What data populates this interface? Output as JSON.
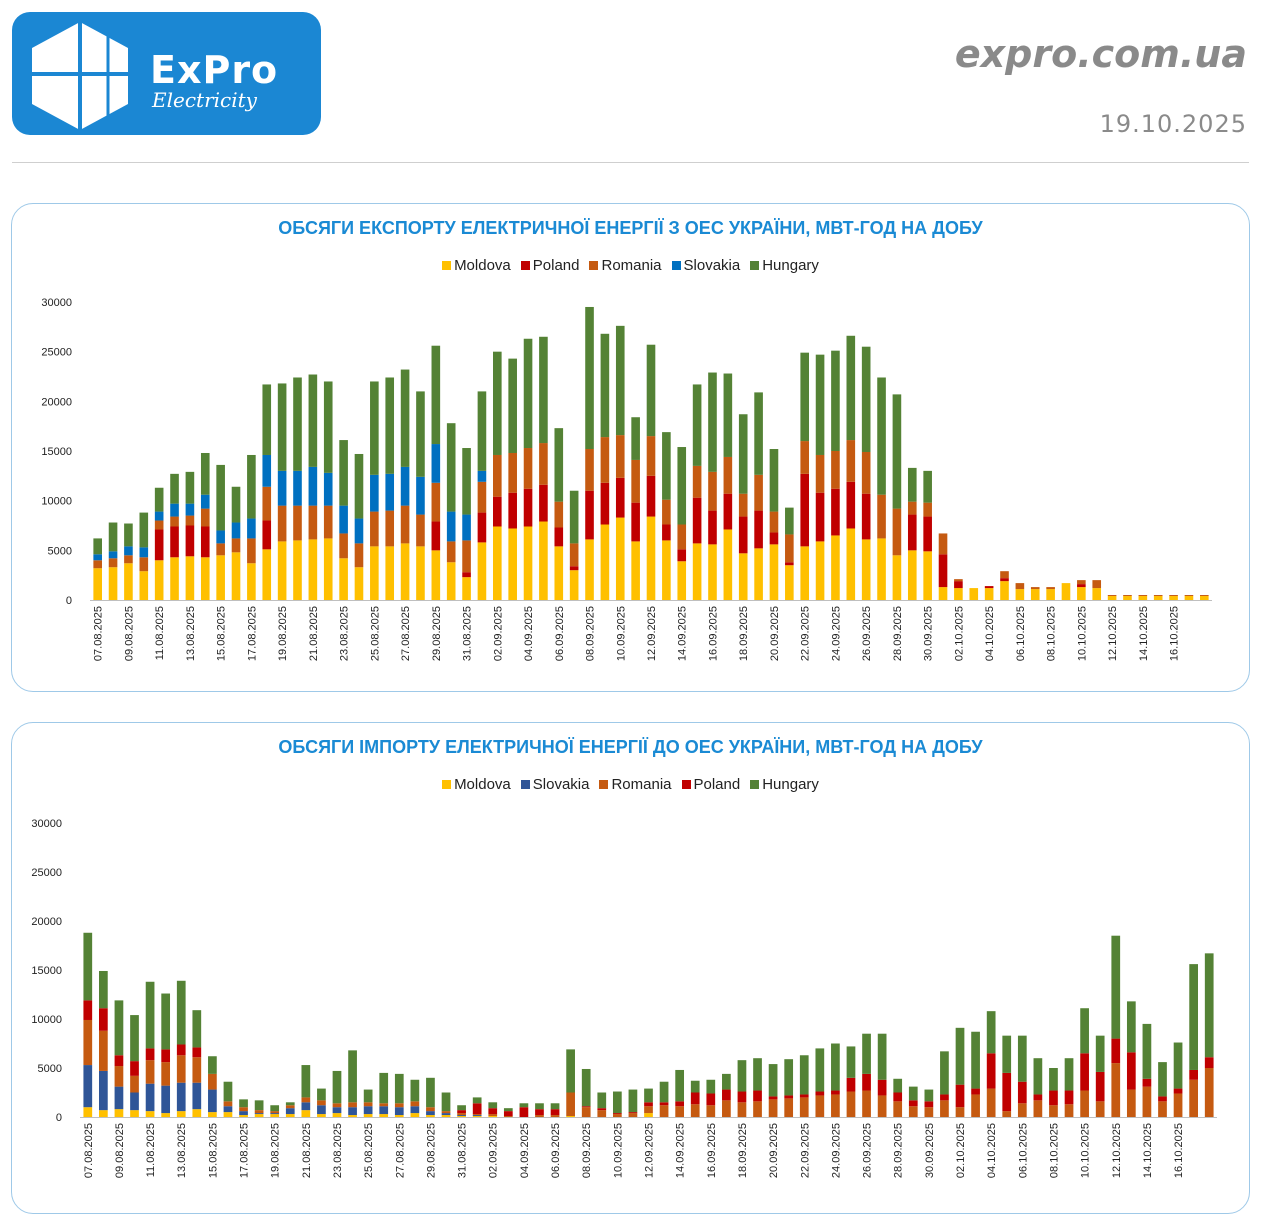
{
  "header": {
    "logo_text": "ExPro",
    "logo_subtitle": "Electricity",
    "site": "expro.com.ua",
    "date": "19.10.2025"
  },
  "colors": {
    "Moldova": "#ffc000",
    "Poland": "#c00000",
    "Romania": "#c55a11",
    "Slovakia_export": "#0070c0",
    "Slovakia_import": "#2f5597",
    "Hungary": "#548235",
    "title": "#1a8ad4"
  },
  "chart_data": [
    {
      "type": "bar",
      "stacked": true,
      "title": "ОБСЯГИ ЕКСПОРТУ ЕЛЕКТРИЧНОЇ ЕНЕРГІЇ З ОЕС УКРАЇНИ, МВТ-ГОД НА ДОБУ",
      "ylim": [
        0,
        30000
      ],
      "yticks": [
        "0",
        "5000",
        "10000",
        "15000",
        "20000",
        "25000",
        "30000"
      ],
      "legend": [
        "Moldova",
        "Poland",
        "Romania",
        "Slovakia",
        "Hungary"
      ],
      "tick_labels": [
        "07.08.2025",
        "09.08.2025",
        "11.08.2025",
        "13.08.2025",
        "15.08.2025",
        "17.08.2025",
        "19.08.2025",
        "21.08.2025",
        "23.08.2025",
        "25.08.2025",
        "27.08.2025",
        "29.08.2025",
        "31.08.2025",
        "02.09.2025",
        "04.09.2025",
        "06.09.2025",
        "08.09.2025",
        "10.09.2025",
        "12.09.2025",
        "14.09.2025",
        "16.09.2025",
        "18.09.2025",
        "20.09.2025",
        "22.09.2025",
        "24.09.2025",
        "26.09.2025",
        "28.09.2025",
        "30.09.2025",
        "02.10.2025",
        "04.10.2025",
        "06.10.2025",
        "08.10.2025",
        "10.10.2025",
        "12.10.2025",
        "14.10.2025",
        "16.10.2025"
      ],
      "series": [
        {
          "name": "Moldova",
          "values": [
            3200,
            3300,
            3700,
            2900,
            4000,
            4300,
            4400,
            4300,
            4500,
            4800,
            3700,
            5100,
            5900,
            6000,
            6100,
            6200,
            4200,
            3300,
            5400,
            5400,
            5700,
            5400,
            5000,
            3800,
            2300,
            5800,
            7400,
            7200,
            7400,
            7900,
            5400,
            3000,
            6100,
            7600,
            8300,
            5900,
            8400,
            6000,
            3900,
            5700,
            5600,
            7100,
            4700,
            5200,
            5600,
            3500,
            5400,
            5900,
            6500,
            7200,
            6100,
            6200,
            4500,
            5000,
            4900,
            1300,
            1200,
            1200,
            1200,
            1900,
            1100,
            1100,
            1100,
            1700,
            1300,
            1200,
            400,
            400,
            400,
            400,
            400,
            400,
            400
          ]
        },
        {
          "name": "Poland",
          "values": [
            0,
            0,
            0,
            0,
            3100,
            3100,
            3100,
            3100,
            0,
            0,
            0,
            2900,
            0,
            0,
            0,
            0,
            0,
            0,
            0,
            0,
            0,
            0,
            2900,
            0,
            500,
            3000,
            3000,
            3600,
            3800,
            3700,
            1900,
            400,
            4900,
            4200,
            4000,
            3900,
            4100,
            1600,
            1200,
            4600,
            3400,
            3600,
            3700,
            3800,
            1200,
            300,
            7300,
            4900,
            4700,
            4700,
            4600,
            0,
            0,
            3600,
            3500,
            3300,
            700,
            0,
            200,
            300,
            0,
            0,
            0,
            0,
            300,
            0,
            0,
            0,
            0,
            0,
            0,
            0,
            0
          ]
        },
        {
          "name": "Romania",
          "values": [
            800,
            900,
            800,
            1400,
            900,
            1000,
            1000,
            1800,
            1200,
            1400,
            2500,
            3400,
            3600,
            3500,
            3400,
            3300,
            2500,
            2400,
            3500,
            3600,
            3800,
            3200,
            3900,
            2100,
            3200,
            3100,
            4200,
            4000,
            4100,
            4200,
            2600,
            2300,
            4200,
            4600,
            4300,
            4300,
            4000,
            2500,
            2500,
            3200,
            3900,
            3700,
            2300,
            3600,
            2100,
            2800,
            3300,
            3800,
            3800,
            4200,
            4200,
            4400,
            4700,
            1300,
            1400,
            2100,
            200,
            0,
            0,
            700,
            600,
            200,
            200,
            0,
            400,
            800,
            100,
            100,
            100,
            100,
            100,
            100,
            100
          ]
        },
        {
          "name": "Slovakia",
          "values": [
            600,
            700,
            900,
            1000,
            900,
            1300,
            1200,
            1400,
            1300,
            1600,
            2000,
            3200,
            3500,
            3500,
            3900,
            3300,
            2800,
            2500,
            3700,
            3700,
            3900,
            3800,
            3900,
            3000,
            2600,
            1100,
            0,
            0,
            0,
            0,
            0,
            0,
            0,
            0,
            0,
            0,
            0,
            0,
            0,
            0,
            0,
            0,
            0,
            0,
            0,
            0,
            0,
            0,
            0,
            0,
            0,
            0,
            0,
            0,
            0,
            0,
            0,
            0,
            0,
            0,
            0,
            0,
            0,
            0,
            0,
            0,
            0,
            0,
            0,
            0,
            0,
            0,
            0
          ]
        },
        {
          "name": "Hungary",
          "values": [
            1600,
            2900,
            2300,
            3500,
            2400,
            3000,
            3200,
            4200,
            6600,
            3600,
            6400,
            7100,
            8800,
            9400,
            9300,
            9200,
            6600,
            6500,
            9400,
            9700,
            9800,
            8600,
            9900,
            8900,
            6700,
            8000,
            10400,
            9500,
            11000,
            10700,
            7400,
            5300,
            14300,
            10400,
            11000,
            4300,
            9200,
            6800,
            7800,
            8200,
            10000,
            8400,
            8000,
            8300,
            6300,
            2700,
            8900,
            10100,
            10100,
            10500,
            10600,
            11800,
            11500,
            3400,
            3200,
            0,
            0,
            0,
            0,
            0,
            0,
            0,
            0,
            0,
            0,
            0,
            0,
            0,
            0,
            0,
            0,
            0,
            0
          ]
        }
      ]
    },
    {
      "type": "bar",
      "stacked": true,
      "title": "ОБСЯГИ ІМПОРТУ ЕЛЕКТРИЧНОЇ ЕНЕРГІЇ ДО ОЕС УКРАЇНИ, МВТ-ГОД НА ДОБУ",
      "ylim": [
        0,
        30000
      ],
      "yticks": [
        "0",
        "5000",
        "10000",
        "15000",
        "20000",
        "25000",
        "30000"
      ],
      "legend": [
        "Moldova",
        "Slovakia",
        "Romania",
        "Poland",
        "Hungary"
      ],
      "tick_labels": [
        "07.08.2025",
        "09.08.2025",
        "11.08.2025",
        "13.08.2025",
        "15.08.2025",
        "17.08.2025",
        "19.08.2025",
        "21.08.2025",
        "23.08.2025",
        "25.08.2025",
        "27.08.2025",
        "29.08.2025",
        "31.08.2025",
        "02.09.2025",
        "04.09.2025",
        "06.09.2025",
        "08.09.2025",
        "10.09.2025",
        "12.09.2025",
        "14.09.2025",
        "16.09.2025",
        "18.09.2025",
        "20.09.2025",
        "22.09.2025",
        "24.09.2025",
        "26.09.2025",
        "28.09.2025",
        "30.09.2025",
        "02.10.2025",
        "04.10.2025",
        "06.10.2025",
        "08.10.2025",
        "10.10.2025",
        "12.10.2025",
        "14.10.2025",
        "16.10.2025"
      ],
      "series": [
        {
          "name": "Moldova",
          "values": [
            1000,
            700,
            800,
            700,
            600,
            400,
            600,
            800,
            500,
            500,
            200,
            300,
            300,
            300,
            700,
            300,
            400,
            200,
            300,
            300,
            200,
            400,
            200,
            200,
            100,
            100,
            100,
            0,
            0,
            0,
            0,
            100,
            0,
            0,
            0,
            0,
            400,
            0,
            0,
            0,
            0,
            0,
            0,
            0,
            0,
            0,
            0,
            0,
            0,
            0,
            0,
            0,
            0,
            0,
            0,
            0,
            0,
            0,
            0,
            0,
            0,
            0,
            0,
            0,
            0,
            0,
            0,
            0,
            0,
            0,
            0,
            0,
            0
          ]
        },
        {
          "name": "Slovakia",
          "values": [
            4300,
            4000,
            2300,
            1800,
            2800,
            2800,
            2900,
            2700,
            2300,
            600,
            400,
            100,
            100,
            600,
            800,
            900,
            600,
            800,
            800,
            800,
            800,
            700,
            400,
            200,
            100,
            100,
            0,
            0,
            0,
            0,
            0,
            0,
            0,
            0,
            0,
            0,
            0,
            0,
            0,
            0,
            0,
            0,
            0,
            0,
            0,
            0,
            0,
            0,
            0,
            0,
            0,
            0,
            0,
            0,
            0,
            0,
            0,
            0,
            0,
            0,
            0,
            0,
            0,
            0,
            0,
            0,
            0,
            0,
            0,
            0,
            0,
            0,
            0
          ]
        },
        {
          "name": "Romania",
          "values": [
            4600,
            4100,
            2100,
            1700,
            2400,
            2400,
            2800,
            2600,
            1600,
            500,
            400,
            300,
            200,
            300,
            500,
            500,
            400,
            500,
            400,
            300,
            400,
            500,
            400,
            200,
            200,
            100,
            200,
            100,
            0,
            200,
            200,
            2400,
            1000,
            700,
            300,
            400,
            700,
            1200,
            1100,
            1300,
            1200,
            1700,
            1500,
            1600,
            1800,
            1900,
            2000,
            2200,
            2300,
            2600,
            2700,
            2200,
            1600,
            1100,
            1000,
            1700,
            1000,
            2300,
            2900,
            600,
            1400,
            1700,
            1200,
            1300,
            2700,
            1600,
            5500,
            2800,
            3100,
            1600,
            2400,
            3800,
            5000
          ]
        },
        {
          "name": "Poland",
          "values": [
            2000,
            2300,
            1100,
            1500,
            1200,
            1300,
            1100,
            1000,
            0,
            0,
            0,
            0,
            0,
            0,
            0,
            0,
            0,
            0,
            0,
            0,
            0,
            0,
            0,
            0,
            300,
            1100,
            600,
            500,
            1000,
            600,
            600,
            0,
            100,
            200,
            100,
            100,
            400,
            300,
            500,
            1200,
            1200,
            1100,
            1100,
            1100,
            300,
            300,
            300,
            400,
            400,
            1400,
            1700,
            1600,
            900,
            600,
            600,
            600,
            2300,
            600,
            3600,
            3900,
            2200,
            600,
            1500,
            1400,
            3800,
            3000,
            2500,
            3800,
            800,
            500,
            500,
            1000,
            1100
          ]
        },
        {
          "name": "Hungary",
          "values": [
            6900,
            3800,
            5600,
            4700,
            6800,
            5700,
            6500,
            3800,
            1800,
            2000,
            800,
            1000,
            600,
            300,
            3300,
            1200,
            3300,
            5300,
            1300,
            3100,
            3000,
            2200,
            3000,
            1900,
            500,
            600,
            600,
            300,
            400,
            600,
            600,
            4400,
            3800,
            1600,
            2200,
            2300,
            1400,
            2100,
            3200,
            1200,
            1400,
            1600,
            3200,
            3300,
            3300,
            3700,
            4000,
            4400,
            4800,
            3200,
            4100,
            4700,
            1400,
            1400,
            1200,
            4400,
            5800,
            5800,
            4300,
            3800,
            4700,
            3700,
            2300,
            3300,
            4600,
            3700,
            10500,
            5200,
            5600,
            3500,
            4700,
            10800,
            10600
          ]
        }
      ]
    }
  ]
}
